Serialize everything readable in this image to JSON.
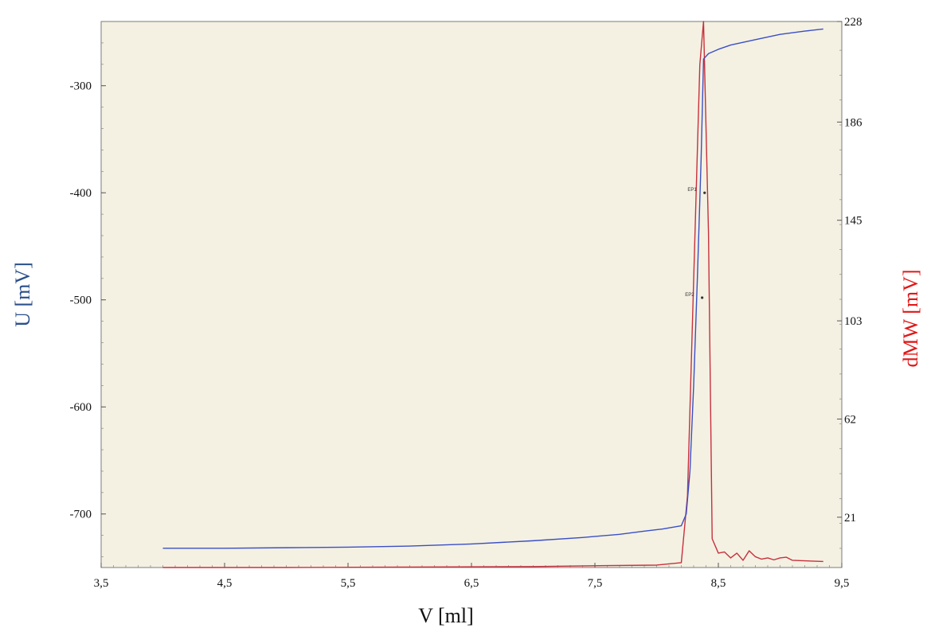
{
  "chart_data": {
    "type": "line",
    "xlabel": "V [ml]",
    "ylabel_left": "U [mV]",
    "ylabel_right": "dMW [mV]",
    "xlim": [
      3.5,
      9.5
    ],
    "ylim_left": [
      -750,
      -240
    ],
    "ylim_right": [
      0,
      228
    ],
    "x_ticks": [
      "3,5",
      "4,5",
      "5,5",
      "6,5",
      "7,5",
      "8,5",
      "9,5"
    ],
    "x_tick_values": [
      3.5,
      4.5,
      5.5,
      6.5,
      7.5,
      8.5,
      9.5
    ],
    "y_left_ticks": [
      "-300",
      "-400",
      "-500",
      "-600",
      "-700"
    ],
    "y_left_tick_values": [
      -300,
      -400,
      -500,
      -600,
      -700
    ],
    "y_right_ticks": [
      "228",
      "186",
      "145",
      "103",
      "62",
      "21"
    ],
    "y_right_tick_values": [
      228,
      186,
      145,
      103,
      62,
      21
    ],
    "grid": false,
    "colors": {
      "U": "#3a4fc4",
      "dMW": "#c8303c",
      "plot_bg": "#f4f1e3",
      "left_label": "#2a4f8a",
      "right_label": "#e01818"
    },
    "series": [
      {
        "axis": "left",
        "color": "#3a4fc4",
        "x": [
          4.0,
          4.5,
          5.0,
          5.5,
          6.0,
          6.5,
          7.0,
          7.4,
          7.7,
          7.9,
          8.05,
          8.2,
          8.24,
          8.27,
          8.3,
          8.33,
          8.36,
          8.38,
          8.42,
          8.5,
          8.6,
          8.8,
          9.0,
          9.2,
          9.35
        ],
        "y": [
          -732,
          -732,
          -731.5,
          -731,
          -730,
          -728,
          -725,
          -722,
          -719,
          -716,
          -714,
          -711,
          -700,
          -660,
          -580,
          -480,
          -370,
          -275,
          -270,
          -266,
          -262,
          -257,
          -252,
          -249,
          -247
        ]
      },
      {
        "axis": "right",
        "color": "#c8303c",
        "x": [
          4.0,
          5.0,
          6.0,
          7.0,
          7.6,
          8.0,
          8.2,
          8.25,
          8.3,
          8.35,
          8.38,
          8.42,
          8.45,
          8.5,
          8.55,
          8.6,
          8.65,
          8.7,
          8.75,
          8.8,
          8.85,
          8.9,
          8.95,
          9.0,
          9.05,
          9.1,
          9.2,
          9.35
        ],
        "y": [
          0,
          0,
          0.2,
          0.4,
          0.8,
          1,
          2,
          30,
          120,
          210,
          228,
          140,
          12,
          6,
          6.5,
          4,
          6,
          3,
          7,
          4.5,
          3.5,
          4,
          3.2,
          4,
          4.3,
          3,
          2.8,
          2.5
        ]
      }
    ],
    "annotations": [
      "EP1",
      "EP2"
    ]
  }
}
